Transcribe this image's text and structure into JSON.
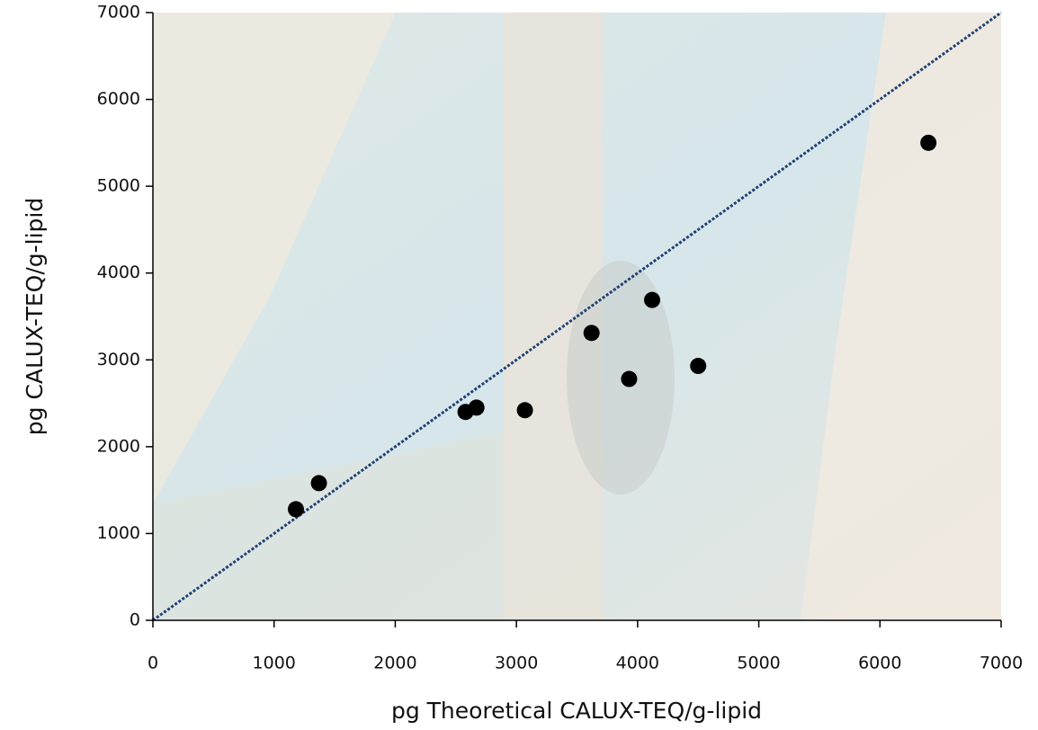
{
  "chart_data": {
    "type": "scatter",
    "x_label": "pg Theoretical CALUX-TEQ/g-lipid",
    "y_label": "pg CALUX-TEQ/g-lipid",
    "x": [
      1180,
      1370,
      2580,
      2670,
      3070,
      3620,
      3930,
      4120,
      4500,
      6400
    ],
    "values": [
      1280,
      1580,
      2400,
      2450,
      2420,
      3310,
      2780,
      3690,
      2930,
      5500
    ],
    "color": "#000000",
    "xlim": [
      0,
      7000
    ],
    "xticks": [
      0,
      1000,
      2000,
      3000,
      4000,
      5000,
      6000,
      7000
    ],
    "ylim": [
      0,
      7000
    ],
    "yticks": [
      0,
      1000,
      2000,
      3000,
      4000,
      5000,
      6000,
      7000
    ],
    "diagonal_line": true,
    "diagonal_color": "#1f3f73"
  }
}
